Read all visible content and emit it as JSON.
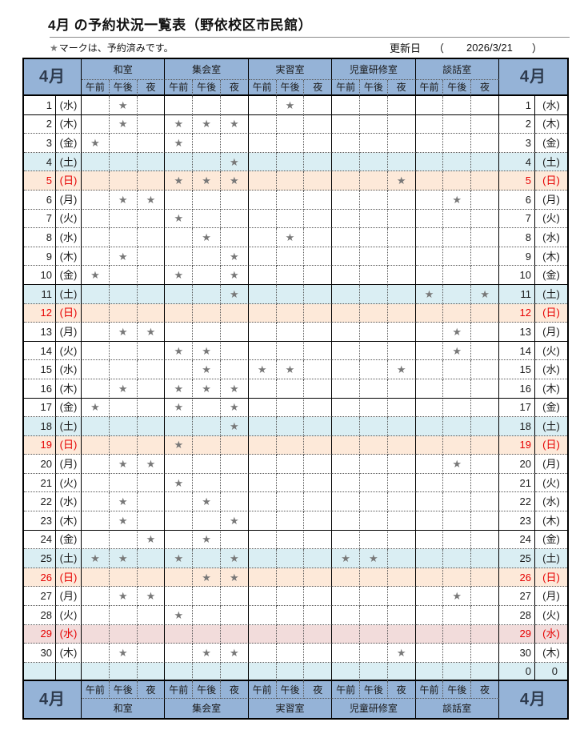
{
  "page": {
    "title": "4月 の予約状況一覧表（野依校区市民館）",
    "legend_star": "★",
    "legend_text": "マークは、予約済みです。",
    "update_label": "更新日",
    "update_paren_open": "（",
    "update_date": "2026/3/21",
    "update_paren_close": "）"
  },
  "colors": {
    "header_blue": "#95B3D7",
    "saturday_row": "#DAEEF3",
    "sunday_row": "#FDE9D9",
    "holiday_row": "#F2DCDB",
    "star_gray": "#787878",
    "red_text": "#E60000"
  },
  "table": {
    "month_label": "4月",
    "rooms": [
      "和室",
      "集会室",
      "実習室",
      "児童研修室",
      "談話室"
    ],
    "slots": [
      "午前",
      "午後",
      "夜"
    ],
    "star": "★",
    "days": [
      {
        "date": "1",
        "dow": "(水)",
        "type": "wd",
        "marks": [
          1,
          7
        ],
        "solid_bottom": true
      },
      {
        "date": "2",
        "dow": "(木)",
        "type": "wd",
        "marks": [
          1,
          3,
          4,
          5
        ]
      },
      {
        "date": "3",
        "dow": "(金)",
        "type": "wd",
        "marks": [
          0,
          3
        ]
      },
      {
        "date": "4",
        "dow": "(土)",
        "type": "sat",
        "marks": [
          5
        ]
      },
      {
        "date": "5",
        "dow": "(日)",
        "type": "sun",
        "marks": [
          3,
          4,
          5,
          11
        ]
      },
      {
        "date": "6",
        "dow": "(月)",
        "type": "wd",
        "marks": [
          1,
          2,
          13
        ]
      },
      {
        "date": "7",
        "dow": "(火)",
        "type": "wd",
        "marks": [
          3
        ]
      },
      {
        "date": "8",
        "dow": "(水)",
        "type": "wd",
        "marks": [
          4,
          7
        ]
      },
      {
        "date": "9",
        "dow": "(木)",
        "type": "wd",
        "marks": [
          1,
          5
        ]
      },
      {
        "date": "10",
        "dow": "(金)",
        "type": "wd",
        "marks": [
          0,
          3,
          5
        ],
        "solid_bottom": true
      },
      {
        "date": "11",
        "dow": "(土)",
        "type": "sat",
        "marks": [
          5,
          12,
          14
        ]
      },
      {
        "date": "12",
        "dow": "(日)",
        "type": "sun",
        "marks": []
      },
      {
        "date": "13",
        "dow": "(月)",
        "type": "wd",
        "marks": [
          1,
          2,
          13
        ],
        "solid_bottom": true
      },
      {
        "date": "14",
        "dow": "(火)",
        "type": "wd",
        "marks": [
          3,
          4,
          13
        ]
      },
      {
        "date": "15",
        "dow": "(水)",
        "type": "wd",
        "marks": [
          4,
          6,
          7,
          11
        ]
      },
      {
        "date": "16",
        "dow": "(木)",
        "type": "wd",
        "marks": [
          1,
          3,
          4,
          5
        ],
        "solid_bottom": true
      },
      {
        "date": "17",
        "dow": "(金)",
        "type": "wd",
        "marks": [
          0,
          3,
          5
        ]
      },
      {
        "date": "18",
        "dow": "(土)",
        "type": "sat",
        "marks": [
          5
        ]
      },
      {
        "date": "19",
        "dow": "(日)",
        "type": "sun",
        "marks": [
          3
        ]
      },
      {
        "date": "20",
        "dow": "(月)",
        "type": "wd",
        "marks": [
          1,
          2,
          13
        ]
      },
      {
        "date": "21",
        "dow": "(火)",
        "type": "wd",
        "marks": [
          3
        ]
      },
      {
        "date": "22",
        "dow": "(水)",
        "type": "wd",
        "marks": [
          1,
          4
        ]
      },
      {
        "date": "23",
        "dow": "(木)",
        "type": "wd",
        "marks": [
          1,
          5
        ],
        "solid_bottom": true
      },
      {
        "date": "24",
        "dow": "(金)",
        "type": "wd",
        "marks": [
          2,
          4
        ]
      },
      {
        "date": "25",
        "dow": "(土)",
        "type": "sat",
        "marks": [
          0,
          1,
          3,
          5,
          9,
          10
        ]
      },
      {
        "date": "26",
        "dow": "(日)",
        "type": "sun",
        "marks": [
          4,
          5
        ]
      },
      {
        "date": "27",
        "dow": "(月)",
        "type": "wd",
        "marks": [
          1,
          2,
          13
        ]
      },
      {
        "date": "28",
        "dow": "(火)",
        "type": "wd",
        "marks": [
          3
        ]
      },
      {
        "date": "29",
        "dow": "(水)",
        "type": "hol",
        "marks": []
      },
      {
        "date": "30",
        "dow": "(木)",
        "type": "wd",
        "marks": [
          1,
          4,
          5,
          11
        ]
      },
      {
        "date": "",
        "dow": "",
        "type": "zero",
        "marks": [],
        "right_date": "0",
        "right_dow": "0"
      }
    ]
  }
}
